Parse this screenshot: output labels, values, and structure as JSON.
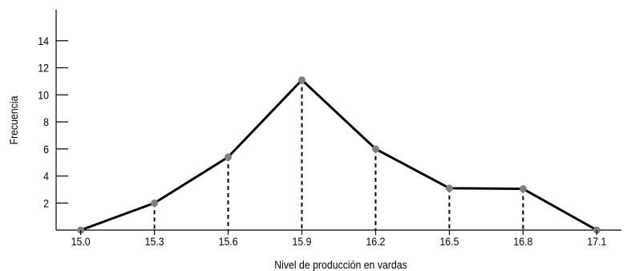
{
  "chart_data": {
    "type": "line",
    "title": "",
    "xlabel": "Nivel de producción en vardas",
    "ylabel": "Frecuencia",
    "x": [
      15.0,
      15.3,
      15.6,
      15.9,
      16.2,
      16.5,
      16.8,
      17.1
    ],
    "x_tick_labels": [
      "15.0",
      "15.3",
      "15.6",
      "15.9",
      "16.2",
      "16.5",
      "16.8",
      "17.1"
    ],
    "y_ticks": [
      2,
      4,
      6,
      8,
      10,
      12,
      14
    ],
    "y_tick_labels": [
      "2",
      "4",
      "6",
      "8",
      "10",
      "12",
      "14"
    ],
    "xlim": [
      14.9,
      17.2
    ],
    "ylim": [
      0,
      16.3
    ],
    "series": [
      {
        "values": [
          0,
          2,
          5.4,
          11.1,
          6,
          3.1,
          3.05,
          0
        ]
      }
    ],
    "grid": false,
    "dashed_drop_lines": true,
    "colors": {
      "line": "#000000",
      "marker": "#808080",
      "drop_line": "#000000"
    }
  }
}
